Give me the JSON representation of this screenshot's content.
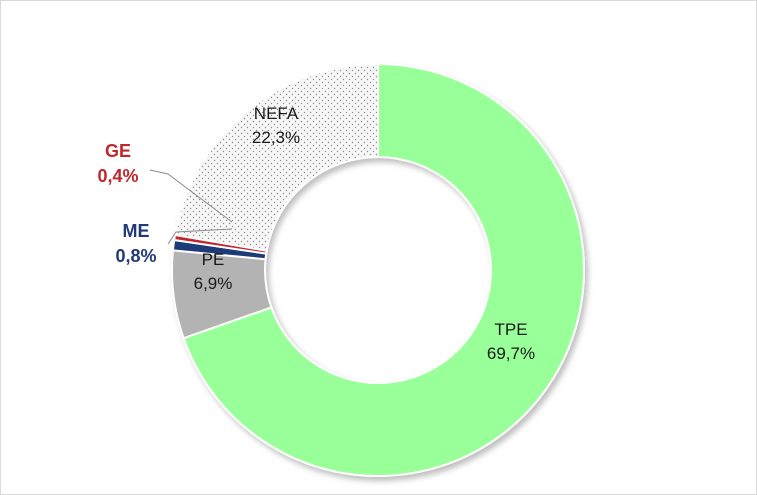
{
  "chart_data": {
    "type": "pie",
    "variant": "donut",
    "slices": [
      {
        "key": "tpe",
        "label": "TPE",
        "value": 69.7,
        "value_text": "69,7%",
        "color": "#99ff99",
        "label_color": "#1a1a1a"
      },
      {
        "key": "pe",
        "label": "PE",
        "value": 6.9,
        "value_text": "6,9%",
        "color": "#b3b3b3",
        "label_color": "#1a1a1a"
      },
      {
        "key": "me",
        "label": "ME",
        "value": 0.8,
        "value_text": "0,8%",
        "color": "#1f3a78",
        "label_color": "#1f3a78"
      },
      {
        "key": "ge",
        "label": "GE",
        "value": 0.4,
        "value_text": "0,4%",
        "color": "#c0272d",
        "label_color": "#c0272d"
      },
      {
        "key": "nefa",
        "label": "NEFA",
        "value": 22.3,
        "value_text": "22,3%",
        "color": "#f7f7f7",
        "pattern": "dotted",
        "label_color": "#1a1a1a"
      }
    ],
    "start_angle": "12 o'clock",
    "direction": "clockwise"
  }
}
